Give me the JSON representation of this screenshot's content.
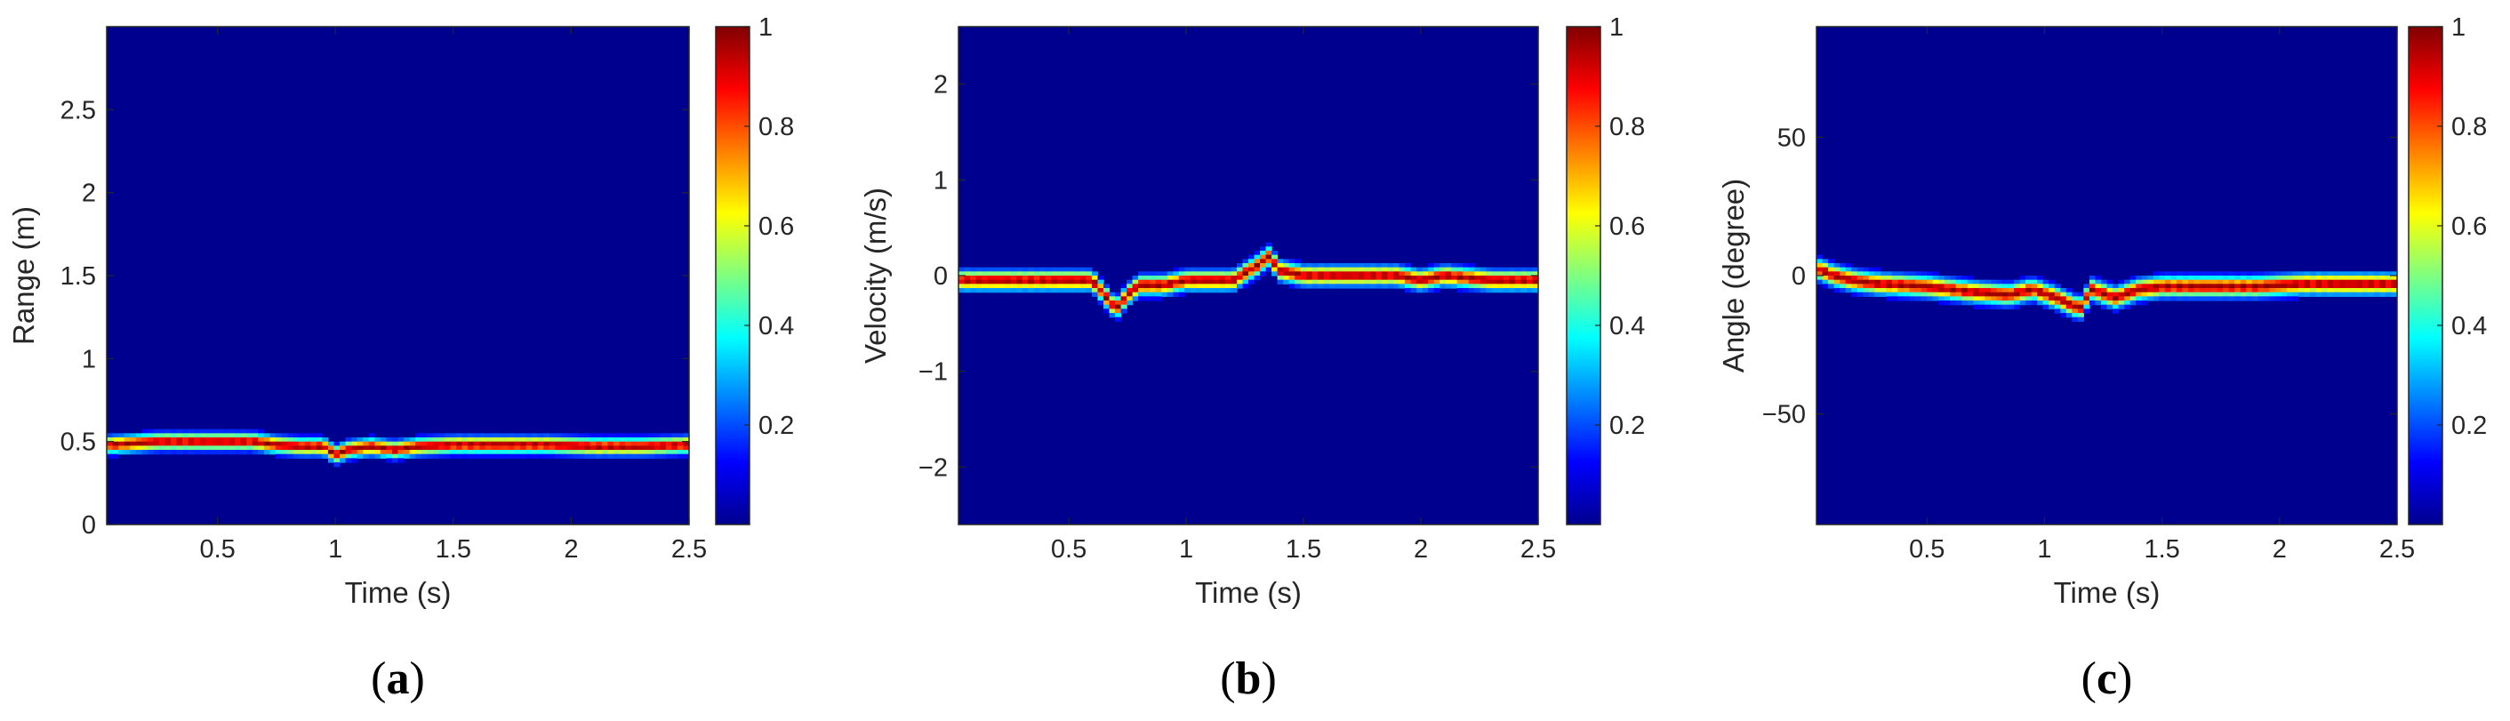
{
  "colors": {
    "background": "#ffffff",
    "colormap": "jet",
    "axis": "#262626"
  },
  "chart_data": [
    {
      "type": "heatmap",
      "panel_label": "(a)",
      "panel_letter": "a",
      "xlabel": "Time (s)",
      "ylabel": "Range (m)",
      "xlim": [
        0.03,
        2.5
      ],
      "ylim": [
        0,
        3
      ],
      "xticks": [
        0.5,
        1,
        1.5,
        2,
        2.5
      ],
      "xtick_labels": [
        "0.5",
        "1",
        "1.5",
        "2",
        "2.5"
      ],
      "yticks": [
        0,
        0.5,
        1,
        1.5,
        2,
        2.5
      ],
      "ytick_labels": [
        "0",
        "0.5",
        "1",
        "1.5",
        "2",
        "2.5"
      ],
      "colorbar": {
        "range": [
          0,
          1
        ],
        "ticks": [
          0.2,
          0.4,
          0.6,
          0.8,
          1
        ],
        "tick_labels": [
          "0.2",
          "0.4",
          "0.6",
          "0.8",
          "1"
        ]
      },
      "grid": false,
      "peak_track": {
        "time": [
          0.05,
          0.15,
          0.25,
          0.35,
          0.45,
          0.55,
          0.65,
          0.75,
          0.85,
          0.95,
          1.0,
          1.05,
          1.15,
          1.25,
          1.35,
          1.5,
          1.7,
          1.9,
          2.1,
          2.3,
          2.5
        ],
        "value": [
          0.48,
          0.49,
          0.5,
          0.5,
          0.5,
          0.5,
          0.5,
          0.48,
          0.47,
          0.47,
          0.42,
          0.45,
          0.47,
          0.45,
          0.47,
          0.48,
          0.48,
          0.48,
          0.47,
          0.47,
          0.48
        ]
      },
      "track_width": 0.03
    },
    {
      "type": "heatmap",
      "panel_label": "(b)",
      "panel_letter": "b",
      "xlabel": "Time (s)",
      "ylabel": "Velocity (m/s)",
      "xlim": [
        0.03,
        2.5
      ],
      "ylim": [
        -2.6,
        2.6
      ],
      "xticks": [
        0.5,
        1,
        1.5,
        2,
        2.5
      ],
      "xtick_labels": [
        "0.5",
        "1",
        "1.5",
        "2",
        "2.5"
      ],
      "yticks": [
        -2,
        -1,
        0,
        1,
        2
      ],
      "ytick_labels": [
        "−2",
        "−1",
        "0",
        "1",
        "2"
      ],
      "colorbar": {
        "range": [
          0,
          1
        ],
        "ticks": [
          0.2,
          0.4,
          0.6,
          0.8,
          1
        ],
        "tick_labels": [
          "0.2",
          "0.4",
          "0.6",
          "0.8",
          "1"
        ]
      },
      "grid": false,
      "peak_track": {
        "time": [
          0.05,
          0.2,
          0.4,
          0.6,
          0.65,
          0.7,
          0.75,
          0.8,
          0.9,
          1.0,
          1.1,
          1.2,
          1.3,
          1.35,
          1.4,
          1.5,
          1.7,
          1.9,
          2.0,
          2.1,
          2.3,
          2.5
        ],
        "value": [
          -0.05,
          -0.05,
          -0.05,
          -0.05,
          -0.2,
          -0.35,
          -0.2,
          -0.1,
          -0.1,
          -0.05,
          -0.05,
          -0.05,
          0.1,
          0.2,
          0.05,
          0.0,
          0.0,
          0.0,
          -0.05,
          0.0,
          -0.05,
          -0.05
        ]
      },
      "track_width": 0.06
    },
    {
      "type": "heatmap",
      "panel_label": "(c)",
      "panel_letter": "c",
      "xlabel": "Time (s)",
      "ylabel": "Angle (degree)",
      "xlim": [
        0.03,
        2.5
      ],
      "ylim": [
        -90,
        90
      ],
      "xticks": [
        0.5,
        1,
        1.5,
        2,
        2.5
      ],
      "xtick_labels": [
        "0.5",
        "1",
        "1.5",
        "2",
        "2.5"
      ],
      "yticks": [
        -50,
        0,
        50
      ],
      "ytick_labels": [
        "−50",
        "0",
        "50"
      ],
      "colorbar": {
        "range": [
          0,
          1
        ],
        "ticks": [
          0.2,
          0.4,
          0.6,
          0.8,
          1
        ],
        "tick_labels": [
          "0.2",
          "0.4",
          "0.6",
          "0.8",
          "1"
        ]
      },
      "grid": false,
      "peak_track": {
        "time": [
          0.05,
          0.1,
          0.2,
          0.3,
          0.5,
          0.7,
          0.85,
          0.95,
          1.05,
          1.15,
          1.2,
          1.3,
          1.4,
          1.5,
          1.7,
          1.9,
          2.1,
          2.3,
          2.5
        ],
        "value": [
          2,
          0,
          -2,
          -3,
          -4,
          -6,
          -7,
          -5,
          -8,
          -12,
          -5,
          -8,
          -5,
          -4,
          -4,
          -4,
          -3,
          -3,
          -3
        ]
      },
      "track_width": 2.2
    }
  ]
}
